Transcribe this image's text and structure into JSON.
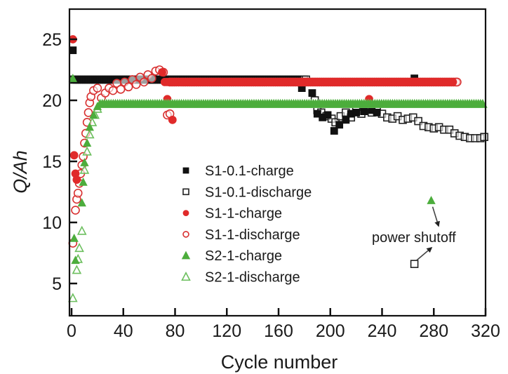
{
  "chart_data": {
    "type": "scatter",
    "title": "",
    "xlabel": "Cycle number",
    "ylabel": "Q/Ah",
    "xlim": [
      0,
      320
    ],
    "ylim": [
      2.5,
      27.5
    ],
    "xticks": [
      0,
      40,
      80,
      120,
      160,
      200,
      240,
      280,
      320
    ],
    "yticks": [
      5,
      10,
      15,
      20,
      25
    ],
    "xtick_labels": [
      "0",
      "40",
      "80",
      "120",
      "160",
      "200",
      "240",
      "280",
      "320"
    ],
    "ytick_labels": [
      "5",
      "10",
      "15",
      "20",
      "25"
    ],
    "grid": false,
    "legend_position": "center-left",
    "series": [
      {
        "name": "S1-0.1-charge",
        "marker": "square-filled",
        "color": "#111111",
        "points": [
          [
            1,
            24.1
          ],
          [
            2,
            21.7
          ],
          [
            178,
            21.0
          ],
          [
            186,
            20.6
          ],
          [
            190,
            18.9
          ],
          [
            194,
            18.6
          ],
          [
            198,
            18.8
          ],
          [
            203,
            17.5
          ],
          [
            207,
            18.0
          ],
          [
            212,
            18.4
          ],
          [
            216,
            18.9
          ],
          [
            220,
            19.0
          ],
          [
            226,
            19.1
          ],
          [
            232,
            19.2
          ],
          [
            236,
            19.0
          ],
          [
            265,
            21.8
          ]
        ],
        "flat_segments": [
          {
            "x_from": 3,
            "x_to": 175,
            "y": 21.7
          }
        ]
      },
      {
        "name": "S1-0.1-discharge",
        "marker": "square-open",
        "color": "#222222",
        "points": [
          [
            188,
            20.0
          ],
          [
            190,
            19.2
          ],
          [
            193,
            19.0
          ],
          [
            197,
            18.7
          ],
          [
            201,
            18.5
          ],
          [
            204,
            18.2
          ],
          [
            208,
            18.7
          ],
          [
            212,
            19.0
          ],
          [
            216,
            18.6
          ],
          [
            220,
            19.2
          ],
          [
            224,
            18.9
          ],
          [
            228,
            19.3
          ],
          [
            232,
            19.0
          ],
          [
            236,
            19.2
          ],
          [
            240,
            18.9
          ],
          [
            244,
            18.6
          ],
          [
            248,
            18.5
          ],
          [
            252,
            18.7
          ],
          [
            256,
            18.4
          ],
          [
            260,
            18.5
          ],
          [
            264,
            18.6
          ],
          [
            268,
            18.3
          ],
          [
            272,
            17.9
          ],
          [
            276,
            17.8
          ],
          [
            280,
            17.7
          ],
          [
            284,
            17.8
          ],
          [
            288,
            17.6
          ],
          [
            292,
            17.6
          ],
          [
            296,
            17.3
          ],
          [
            300,
            17.1
          ],
          [
            304,
            17.0
          ],
          [
            308,
            16.9
          ],
          [
            312,
            16.9
          ],
          [
            316,
            16.9
          ],
          [
            319,
            17.0
          ],
          [
            265,
            6.6
          ]
        ],
        "flat_segments": [
          {
            "x_from": 1,
            "x_to": 182,
            "y": 21.7
          }
        ]
      },
      {
        "name": "S1-1-charge",
        "marker": "circle-filled",
        "color": "#e02a2a",
        "points": [
          [
            1,
            25.0
          ],
          [
            2,
            15.5
          ],
          [
            3,
            14.0
          ],
          [
            4,
            13.5
          ],
          [
            70,
            22.3
          ],
          [
            74,
            20.1
          ],
          [
            78,
            18.4
          ],
          [
            230,
            20.1
          ]
        ],
        "flat_segments": [
          {
            "x_from": 72,
            "x_to": 296,
            "y": 21.5
          }
        ]
      },
      {
        "name": "S1-1-discharge",
        "marker": "circle-open",
        "color": "#d83030",
        "points": [
          [
            1,
            8.3
          ],
          [
            3,
            11.0
          ],
          [
            4,
            11.9
          ],
          [
            5,
            12.4
          ],
          [
            6,
            13.2
          ],
          [
            7,
            14.0
          ],
          [
            8,
            14.7
          ],
          [
            9,
            15.4
          ],
          [
            10,
            16.5
          ],
          [
            11,
            17.3
          ],
          [
            12,
            18.2
          ],
          [
            13,
            19.0
          ],
          [
            14,
            19.8
          ],
          [
            15,
            20.3
          ],
          [
            17,
            20.8
          ],
          [
            20,
            21.0
          ],
          [
            23,
            20.2
          ],
          [
            26,
            20.6
          ],
          [
            29,
            21.0
          ],
          [
            32,
            20.8
          ],
          [
            35,
            21.4
          ],
          [
            38,
            20.9
          ],
          [
            41,
            21.5
          ],
          [
            44,
            21.1
          ],
          [
            47,
            21.7
          ],
          [
            50,
            21.3
          ],
          [
            53,
            21.9
          ],
          [
            56,
            21.5
          ],
          [
            59,
            22.1
          ],
          [
            62,
            21.8
          ],
          [
            65,
            22.4
          ],
          [
            68,
            22.5
          ],
          [
            71,
            22.3
          ],
          [
            74,
            18.8
          ],
          [
            76,
            18.9
          ],
          [
            298,
            21.5
          ]
        ],
        "flat_segments": [
          {
            "x_from": 76,
            "x_to": 298,
            "y": 21.5
          }
        ]
      },
      {
        "name": "S2-1-charge",
        "marker": "triangle-filled",
        "color": "#4cad3c",
        "points": [
          [
            1,
            21.8
          ],
          [
            2,
            8.7
          ],
          [
            3,
            6.9
          ],
          [
            8,
            11.6
          ],
          [
            9,
            13.3
          ],
          [
            10,
            14.9
          ],
          [
            12,
            16.5
          ],
          [
            14,
            17.8
          ],
          [
            17,
            18.8
          ],
          [
            20,
            19.5
          ],
          [
            278,
            11.8
          ]
        ],
        "flat_segments": [
          {
            "x_from": 22,
            "x_to": 318,
            "y": 19.7
          }
        ]
      },
      {
        "name": "S2-1-discharge",
        "marker": "triangle-open",
        "color": "#6cbf5e",
        "points": [
          [
            1,
            3.8
          ],
          [
            4,
            6.1
          ],
          [
            5,
            7.0
          ],
          [
            6,
            7.9
          ],
          [
            8,
            9.3
          ],
          [
            10,
            14.3
          ],
          [
            12,
            15.8
          ],
          [
            14,
            17.2
          ],
          [
            16,
            18.2
          ],
          [
            18,
            18.8
          ],
          [
            20,
            19.3
          ]
        ],
        "flat_segments": [
          {
            "x_from": 22,
            "x_to": 318,
            "y": 19.7
          }
        ]
      }
    ],
    "annotations": [
      {
        "text": "power shutoff",
        "points_to": [
          [
            278,
            11.8
          ],
          [
            265,
            6.6
          ]
        ]
      }
    ]
  }
}
